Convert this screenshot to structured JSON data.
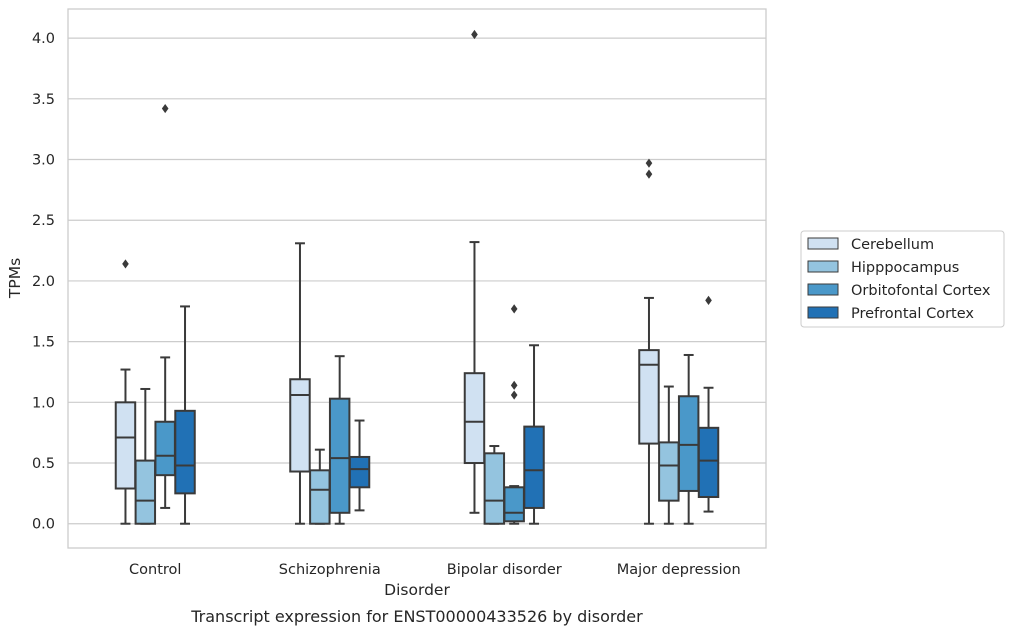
{
  "chart_data": {
    "type": "box",
    "title": "",
    "caption": "Transcript expression for ENST00000433526 by disorder",
    "xlabel": "Disorder",
    "ylabel": "TPMs",
    "ylim": [
      -0.2,
      4.24
    ],
    "yticks": [
      "0.0",
      "0.5",
      "1.0",
      "1.5",
      "2.0",
      "2.5",
      "3.0",
      "3.5",
      "4.0"
    ],
    "grid": true,
    "legend_position": "right",
    "categories": [
      "Control",
      "Schizophrenia",
      "Bipolar disorder",
      "Major depression"
    ],
    "series": [
      {
        "name": "Cerebellum",
        "color": "#d0e1f2",
        "boxes": [
          {
            "whisker_low": 0.0,
            "q1": 0.29,
            "median": 0.71,
            "q3": 1.0,
            "whisker_high": 1.27,
            "outliers": [
              2.14
            ]
          },
          {
            "whisker_low": 0.0,
            "q1": 0.43,
            "median": 1.06,
            "q3": 1.19,
            "whisker_high": 2.31,
            "outliers": []
          },
          {
            "whisker_low": 0.09,
            "q1": 0.5,
            "median": 0.84,
            "q3": 1.24,
            "whisker_high": 2.32,
            "outliers": [
              4.03
            ]
          },
          {
            "whisker_low": 0.0,
            "q1": 0.66,
            "median": 1.31,
            "q3": 1.43,
            "whisker_high": 1.86,
            "outliers": [
              2.88,
              2.97
            ]
          }
        ]
      },
      {
        "name": "Hipppocampus",
        "color": "#94c4df",
        "boxes": [
          {
            "whisker_low": 0.0,
            "q1": 0.0,
            "median": 0.19,
            "q3": 0.52,
            "whisker_high": 1.11,
            "outliers": []
          },
          {
            "whisker_low": 0.0,
            "q1": 0.0,
            "median": 0.28,
            "q3": 0.44,
            "whisker_high": 0.61,
            "outliers": []
          },
          {
            "whisker_low": 0.0,
            "q1": 0.0,
            "median": 0.19,
            "q3": 0.58,
            "whisker_high": 0.64,
            "outliers": []
          },
          {
            "whisker_low": 0.0,
            "q1": 0.19,
            "median": 0.48,
            "q3": 0.67,
            "whisker_high": 1.13,
            "outliers": []
          }
        ]
      },
      {
        "name": "Orbitofontal Cortex",
        "color": "#4a98c9",
        "boxes": [
          {
            "whisker_low": 0.13,
            "q1": 0.4,
            "median": 0.56,
            "q3": 0.84,
            "whisker_high": 1.37,
            "outliers": [
              3.42
            ]
          },
          {
            "whisker_low": 0.0,
            "q1": 0.09,
            "median": 0.54,
            "q3": 1.03,
            "whisker_high": 1.38,
            "outliers": []
          },
          {
            "whisker_low": 0.0,
            "q1": 0.02,
            "median": 0.09,
            "q3": 0.3,
            "whisker_high": 0.31,
            "outliers": [
              1.06,
              1.14,
              1.77
            ]
          },
          {
            "whisker_low": 0.0,
            "q1": 0.27,
            "median": 0.65,
            "q3": 1.05,
            "whisker_high": 1.39,
            "outliers": []
          }
        ]
      },
      {
        "name": "Prefrontal Cortex",
        "color": "#2171b5",
        "boxes": [
          {
            "whisker_low": 0.0,
            "q1": 0.25,
            "median": 0.48,
            "q3": 0.93,
            "whisker_high": 1.79,
            "outliers": []
          },
          {
            "whisker_low": 0.11,
            "q1": 0.3,
            "median": 0.45,
            "q3": 0.55,
            "whisker_high": 0.85,
            "outliers": []
          },
          {
            "whisker_low": 0.0,
            "q1": 0.13,
            "median": 0.44,
            "q3": 0.8,
            "whisker_high": 1.47,
            "outliers": []
          },
          {
            "whisker_low": 0.1,
            "q1": 0.22,
            "median": 0.52,
            "q3": 0.79,
            "whisker_high": 1.12,
            "outliers": [
              1.84
            ]
          }
        ]
      }
    ]
  }
}
